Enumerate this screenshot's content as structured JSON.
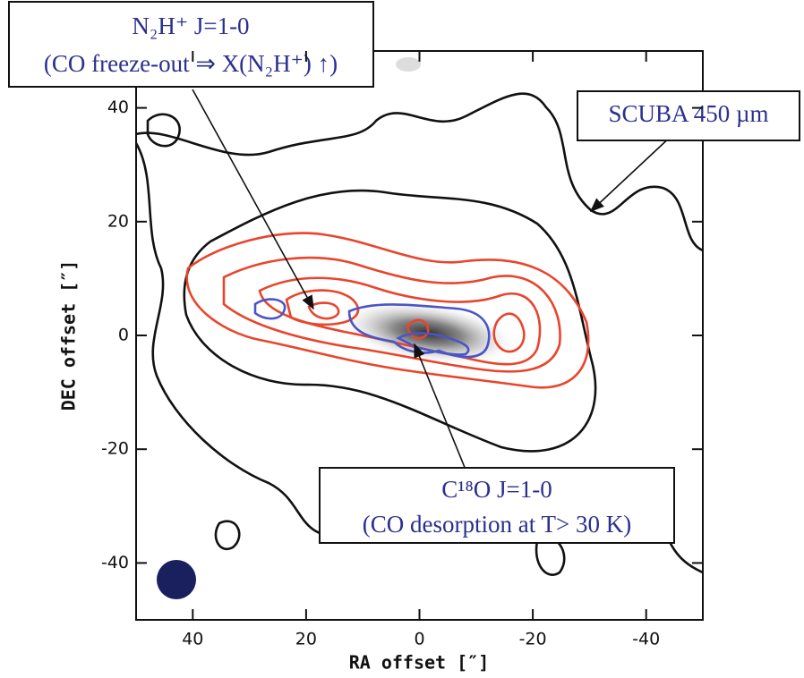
{
  "chart_data": {
    "type": "contour",
    "xlabel": "RA offset [″]",
    "ylabel": "DEC offset [″]",
    "xlim": [
      50,
      -50
    ],
    "ylim": [
      -50,
      50
    ],
    "xticks": [
      40,
      20,
      0,
      -20,
      -40
    ],
    "yticks": [
      40,
      20,
      0,
      -20,
      -40
    ],
    "annotations": [
      {
        "lines": [
          "N₂H⁺ J=1-0",
          "(CO freeze-out ⇒ X(N₂H⁺) ↑)"
        ]
      },
      {
        "lines": [
          "SCUBA 450 µm"
        ]
      },
      {
        "lines": [
          "C¹⁸O J=1-0",
          "(CO desorption at T> 30 K)"
        ]
      }
    ]
  }
}
